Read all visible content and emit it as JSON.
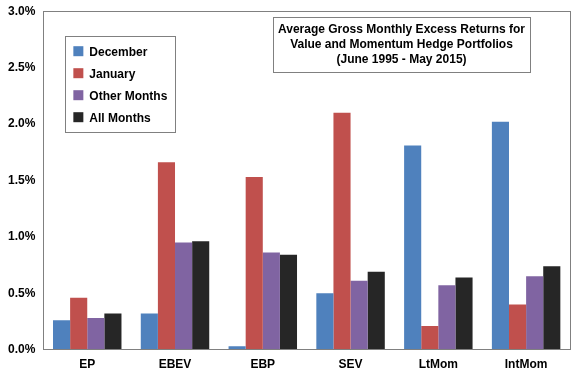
{
  "chart_data": {
    "type": "bar",
    "title": "Average Gross Monthly Excess Returns for Value and Momentum Hedge Portfolios",
    "subtitle": "(June 1995 - May 2015)",
    "categories": [
      "EP",
      "EBEV",
      "EBP",
      "SEV",
      "LtMom",
      "IntMom"
    ],
    "series": [
      {
        "name": "December",
        "color": "#4f81bd",
        "values": [
          0.26,
          0.32,
          0.03,
          0.5,
          1.81,
          2.02
        ]
      },
      {
        "name": "January",
        "color": "#c0504d",
        "values": [
          0.46,
          1.66,
          1.53,
          2.1,
          0.21,
          0.4
        ]
      },
      {
        "name": "Other Months",
        "color": "#8064a2",
        "values": [
          0.28,
          0.95,
          0.86,
          0.61,
          0.57,
          0.65
        ]
      },
      {
        "name": "All Months",
        "color": "#262626",
        "values": [
          0.32,
          0.96,
          0.84,
          0.69,
          0.64,
          0.74
        ]
      }
    ],
    "ylim": [
      0,
      3.0
    ],
    "yticks": [
      {
        "value": 0,
        "label": "0.0%"
      },
      {
        "value": 0.5,
        "label": "0.5%"
      },
      {
        "value": 1.0,
        "label": "1.0%"
      },
      {
        "value": 1.5,
        "label": "1.5%"
      },
      {
        "value": 2.0,
        "label": "2.0%"
      },
      {
        "value": 2.5,
        "label": "2.5%"
      },
      {
        "value": 3.0,
        "label": "3.0%"
      }
    ],
    "grid": false,
    "legend": "upper left"
  }
}
